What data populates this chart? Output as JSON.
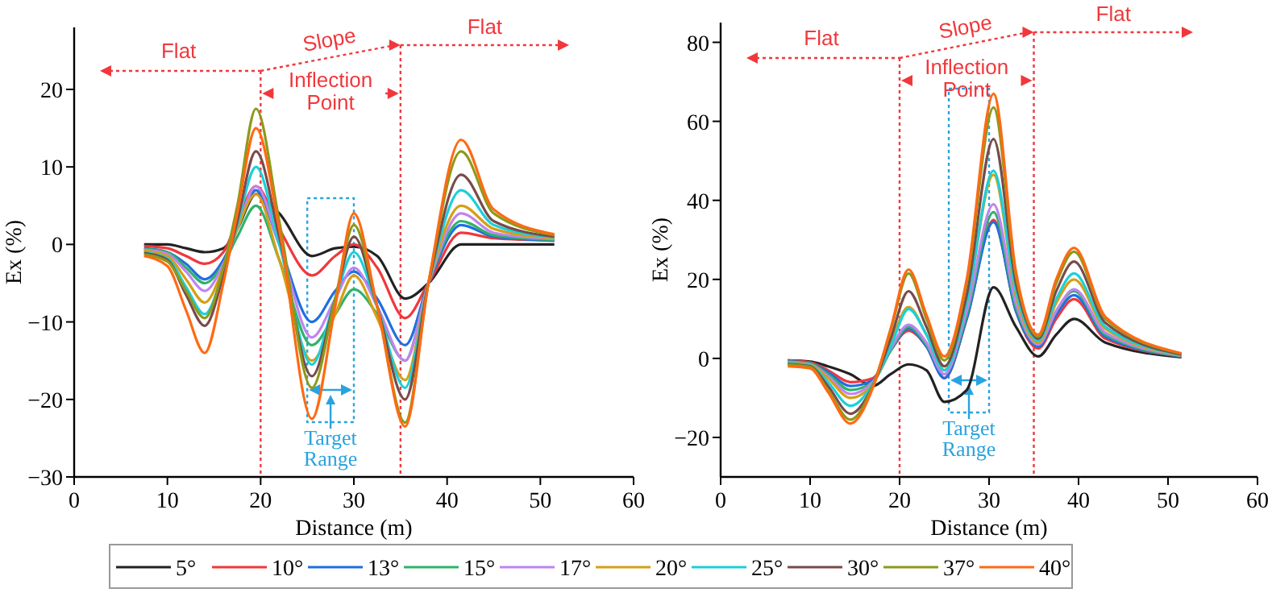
{
  "chart_data": [
    {
      "type": "line",
      "xlabel": "Distance (m)",
      "ylabel": "Ex (%)",
      "xlim": [
        0,
        60
      ],
      "xticks": [
        0,
        10,
        20,
        30,
        40,
        50,
        60
      ],
      "ylim": [
        -30,
        28
      ],
      "yticks": [
        -30,
        -20,
        -10,
        0,
        10,
        20
      ],
      "grid": false,
      "legend": "bottom",
      "marker": "none",
      "line_style": "solid",
      "x": [
        7.5,
        10,
        12,
        14,
        16,
        17.5,
        19.5,
        22,
        25.5,
        28,
        30,
        32.5,
        35.5,
        38,
        41.5,
        45,
        51.5
      ],
      "series": [
        {
          "name": "5°",
          "color": "#222222",
          "values": [
            0,
            0,
            -0.5,
            -1,
            -0.5,
            2,
            6.5,
            4,
            -1.5,
            -0.5,
            -0.3,
            -1.5,
            -7,
            -5,
            0,
            0,
            0
          ]
        },
        {
          "name": "10°",
          "color": "#f0383c",
          "values": [
            -0.2,
            -0.5,
            -1.5,
            -2.5,
            -1,
            3,
            7.5,
            2,
            -4,
            -1.5,
            0,
            -3,
            -9.5,
            -5,
            1.5,
            0.8,
            0.5
          ]
        },
        {
          "name": "13°",
          "color": "#1f6fe0",
          "values": [
            -0.5,
            -1,
            -2.5,
            -4.5,
            -2,
            2,
            7,
            0,
            -10,
            -6,
            -3.5,
            -7,
            -13,
            -5,
            2.5,
            1,
            0.5
          ]
        },
        {
          "name": "15°",
          "color": "#2fb36b",
          "values": [
            -0.6,
            -1,
            -3,
            -5,
            -2.5,
            1,
            5,
            -2,
            -13,
            -9,
            -5.8,
            -9,
            -15,
            -5,
            3,
            1.2,
            0.6
          ]
        },
        {
          "name": "17°",
          "color": "#c084f0",
          "values": [
            -0.7,
            -1.2,
            -3.5,
            -6,
            -2.5,
            2,
            7.5,
            0,
            -12,
            -7,
            -3,
            -8,
            -15,
            -5,
            4,
            1.5,
            0.7
          ]
        },
        {
          "name": "20°",
          "color": "#d4a017",
          "values": [
            -0.8,
            -1.5,
            -4.5,
            -7.5,
            -3,
            2,
            6.5,
            -2,
            -15,
            -9,
            -4,
            -9.5,
            -17.5,
            -5,
            5,
            2,
            0.8
          ]
        },
        {
          "name": "25°",
          "color": "#1ccfd9",
          "values": [
            -1,
            -1.8,
            -5.5,
            -9,
            -3.5,
            2.5,
            10,
            0,
            -15.5,
            -7,
            -1,
            -8,
            -18.5,
            -5,
            7,
            2.5,
            0.9
          ]
        },
        {
          "name": "30°",
          "color": "#7a4a4a",
          "values": [
            -1.1,
            -2,
            -6.5,
            -10.5,
            -4,
            3,
            12,
            1,
            -17,
            -7,
            1,
            -8,
            -20,
            -5,
            9,
            3,
            1
          ]
        },
        {
          "name": "37°",
          "color": "#8c9a1a",
          "values": [
            -1.3,
            -2.2,
            -6,
            -9.5,
            -3,
            5,
            17.5,
            3,
            -18.5,
            -7,
            2.5,
            -8,
            -23,
            -5,
            12,
            4,
            1.2
          ]
        },
        {
          "name": "40°",
          "color": "#ff6a13",
          "values": [
            -1.5,
            -2.8,
            -8.5,
            -14,
            -5,
            4,
            15,
            2,
            -22.5,
            -8,
            4,
            -8,
            -23.5,
            -5,
            13.5,
            4.5,
            1.3
          ]
        }
      ],
      "ref_lines": [
        {
          "axis": "x",
          "value": 20,
          "color": "#f0383c",
          "line_style": "dotted"
        },
        {
          "axis": "x",
          "value": 35,
          "color": "#f0383c",
          "line_style": "dotted"
        }
      ],
      "annotations": [
        "Flat",
        "Slope",
        "Flat",
        "Inflection Point",
        "Target Range"
      ]
    },
    {
      "type": "line",
      "xlabel": "Distance (m)",
      "ylabel": "Ex (%)",
      "xlim": [
        0,
        60
      ],
      "xticks": [
        0,
        10,
        20,
        30,
        40,
        50,
        60
      ],
      "ylim": [
        -30,
        85
      ],
      "yticks": [
        -20,
        0,
        20,
        40,
        60,
        80
      ],
      "grid": false,
      "legend": "bottom",
      "marker": "none",
      "line_style": "solid",
      "x": [
        7.5,
        10,
        12,
        14.5,
        17,
        19,
        21,
        23,
        25,
        27.5,
        30.5,
        33,
        35.5,
        37.5,
        39.5,
        43,
        51.5
      ],
      "series": [
        {
          "name": "5°",
          "color": "#222222",
          "values": [
            -0.5,
            -0.8,
            -2,
            -4,
            -7,
            -4,
            -1.5,
            -3,
            -11,
            -8,
            18,
            8,
            0.5,
            6,
            10,
            4,
            0.3
          ]
        },
        {
          "name": "10°",
          "color": "#f0383c",
          "values": [
            -0.5,
            -1,
            -3,
            -6,
            -5,
            2,
            7,
            3,
            -5,
            10,
            35,
            12,
            2.5,
            10,
            15,
            5,
            0.5
          ]
        },
        {
          "name": "13°",
          "color": "#1f6fe0",
          "values": [
            -0.7,
            -1.2,
            -3.5,
            -7,
            -5.5,
            2,
            7.5,
            3,
            -5,
            10,
            34.5,
            12,
            3,
            11,
            16,
            5.5,
            0.5
          ]
        },
        {
          "name": "15°",
          "color": "#2fb36b",
          "values": [
            -0.8,
            -1.3,
            -4,
            -8,
            -6,
            2,
            8,
            3.5,
            -4,
            11,
            37,
            13,
            3.5,
            12,
            17,
            6,
            0.6
          ]
        },
        {
          "name": "17°",
          "color": "#c084f0",
          "values": [
            -0.9,
            -1.5,
            -4.5,
            -9,
            -6,
            2.5,
            8.5,
            4,
            -4,
            12,
            39,
            14,
            3.5,
            12,
            17.5,
            6.5,
            0.7
          ]
        },
        {
          "name": "20°",
          "color": "#d4a017",
          "values": [
            -1,
            -1.6,
            -5,
            -10,
            -6.5,
            4,
            13,
            6,
            -3,
            14,
            46.5,
            16,
            4,
            14,
            20,
            7.5,
            0.8
          ]
        },
        {
          "name": "25°",
          "color": "#1ccfd9",
          "values": [
            -1.2,
            -1.8,
            -6,
            -12,
            -6.5,
            3,
            12.5,
            6,
            -3,
            14,
            47.5,
            17,
            4.5,
            15,
            21.5,
            8,
            0.9
          ]
        },
        {
          "name": "30°",
          "color": "#7a4a4a",
          "values": [
            -1.4,
            -2,
            -7,
            -14,
            -7,
            5,
            17,
            8,
            -2,
            16,
            55.5,
            19,
            5,
            17,
            24.5,
            9,
            1
          ]
        },
        {
          "name": "37°",
          "color": "#8c9a1a",
          "values": [
            -1.6,
            -2.2,
            -8,
            -15.5,
            -7,
            7,
            21.5,
            10,
            -0.5,
            19,
            63.5,
            21,
            5.5,
            19,
            27,
            10,
            1.2
          ]
        },
        {
          "name": "40°",
          "color": "#ff6a13",
          "values": [
            -2,
            -2.5,
            -8.5,
            -16.5,
            -7.5,
            7.5,
            22.5,
            11,
            0.5,
            20,
            67,
            22,
            6,
            20,
            28,
            10.5,
            1.3
          ]
        }
      ],
      "ref_lines": [
        {
          "axis": "x",
          "value": 20,
          "color": "#f0383c",
          "line_style": "dotted"
        },
        {
          "axis": "x",
          "value": 35,
          "color": "#f0383c",
          "line_style": "dotted"
        }
      ],
      "annotations": [
        "Flat",
        "Slope",
        "Flat",
        "Inflection Point",
        "Target Range"
      ]
    }
  ]
}
